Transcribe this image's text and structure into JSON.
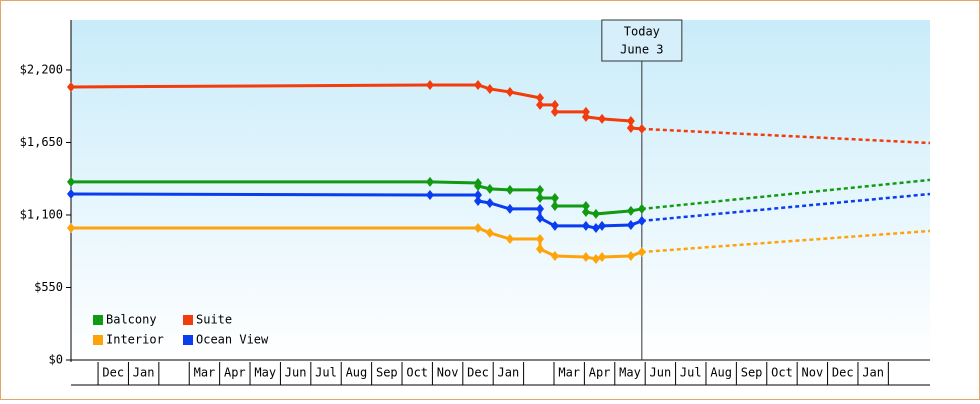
{
  "chart_data": {
    "type": "line",
    "ylim": [
      0,
      2579
    ],
    "yticks": [
      {
        "value": 0,
        "label": "$0"
      },
      {
        "value": 550,
        "label": "$550"
      },
      {
        "value": 1100,
        "label": "$1,100"
      },
      {
        "value": 1650,
        "label": "$1,650"
      },
      {
        "value": 2200,
        "label": "$2,200"
      }
    ],
    "xlim": [
      -0.89,
      27.37
    ],
    "categories": [
      "Dec",
      "Jan",
      null,
      "Mar",
      "Apr",
      "May",
      "Jun",
      "Jul",
      "Aug",
      "Sep",
      "Oct",
      "Nov",
      "Dec",
      "Jan",
      null,
      "Mar",
      "Apr",
      "May",
      "Jun",
      "Jul",
      "Aug",
      "Sep",
      "Oct",
      "Nov",
      "Dec",
      "Jan",
      null
    ],
    "annotation": {
      "x": 17.89,
      "lines": [
        "Today",
        "June 3"
      ]
    },
    "series": [
      {
        "name": "Balcony",
        "color": "#129b12",
        "x": [
          -0.89,
          10.92,
          12.5,
          12.5,
          12.89,
          13.55,
          14.54,
          14.54,
          15.03,
          15.03,
          16.05,
          16.05,
          16.38,
          17.53,
          17.89
        ],
        "values": [
          1351,
          1351,
          1343,
          1320,
          1298,
          1290,
          1290,
          1229,
          1229,
          1168,
          1168,
          1123,
          1108,
          1131,
          1146
        ],
        "forecast_x": [
          17.89,
          27.37
        ],
        "forecast_values": [
          1146,
          1366
        ]
      },
      {
        "name": "Suite",
        "color": "#f23c0c",
        "x": [
          -0.89,
          10.92,
          12.5,
          12.89,
          13.55,
          14.54,
          14.54,
          15.03,
          15.03,
          16.05,
          16.05,
          16.58,
          17.53,
          17.53,
          17.89
        ],
        "values": [
          2071,
          2086,
          2086,
          2056,
          2033,
          1988,
          1935,
          1935,
          1882,
          1882,
          1844,
          1829,
          1813,
          1760,
          1753
        ],
        "forecast_x": [
          17.89,
          27.37
        ],
        "forecast_values": [
          1753,
          1646
        ]
      },
      {
        "name": "Interior",
        "color": "#ffa30a",
        "x": [
          -0.89,
          12.5,
          12.89,
          13.55,
          14.54,
          14.54,
          15.03,
          16.05,
          16.38,
          16.58,
          17.53,
          17.89
        ],
        "values": [
          1001,
          1001,
          964,
          918,
          918,
          842,
          789,
          781,
          766,
          781,
          789,
          819
        ],
        "forecast_x": [
          17.89,
          27.37
        ],
        "forecast_values": [
          819,
          979
        ]
      },
      {
        "name": "Ocean View",
        "color": "#0a3cf0",
        "x": [
          -0.89,
          10.92,
          12.5,
          12.5,
          12.89,
          13.55,
          14.54,
          14.54,
          15.03,
          16.05,
          16.38,
          16.58,
          17.53,
          17.89
        ],
        "values": [
          1259,
          1252,
          1252,
          1206,
          1191,
          1146,
          1146,
          1077,
          1017,
          1017,
          1001,
          1017,
          1024,
          1055
        ],
        "forecast_x": [
          17.89,
          27.37
        ],
        "forecast_values": [
          1055,
          1259
        ]
      }
    ]
  }
}
